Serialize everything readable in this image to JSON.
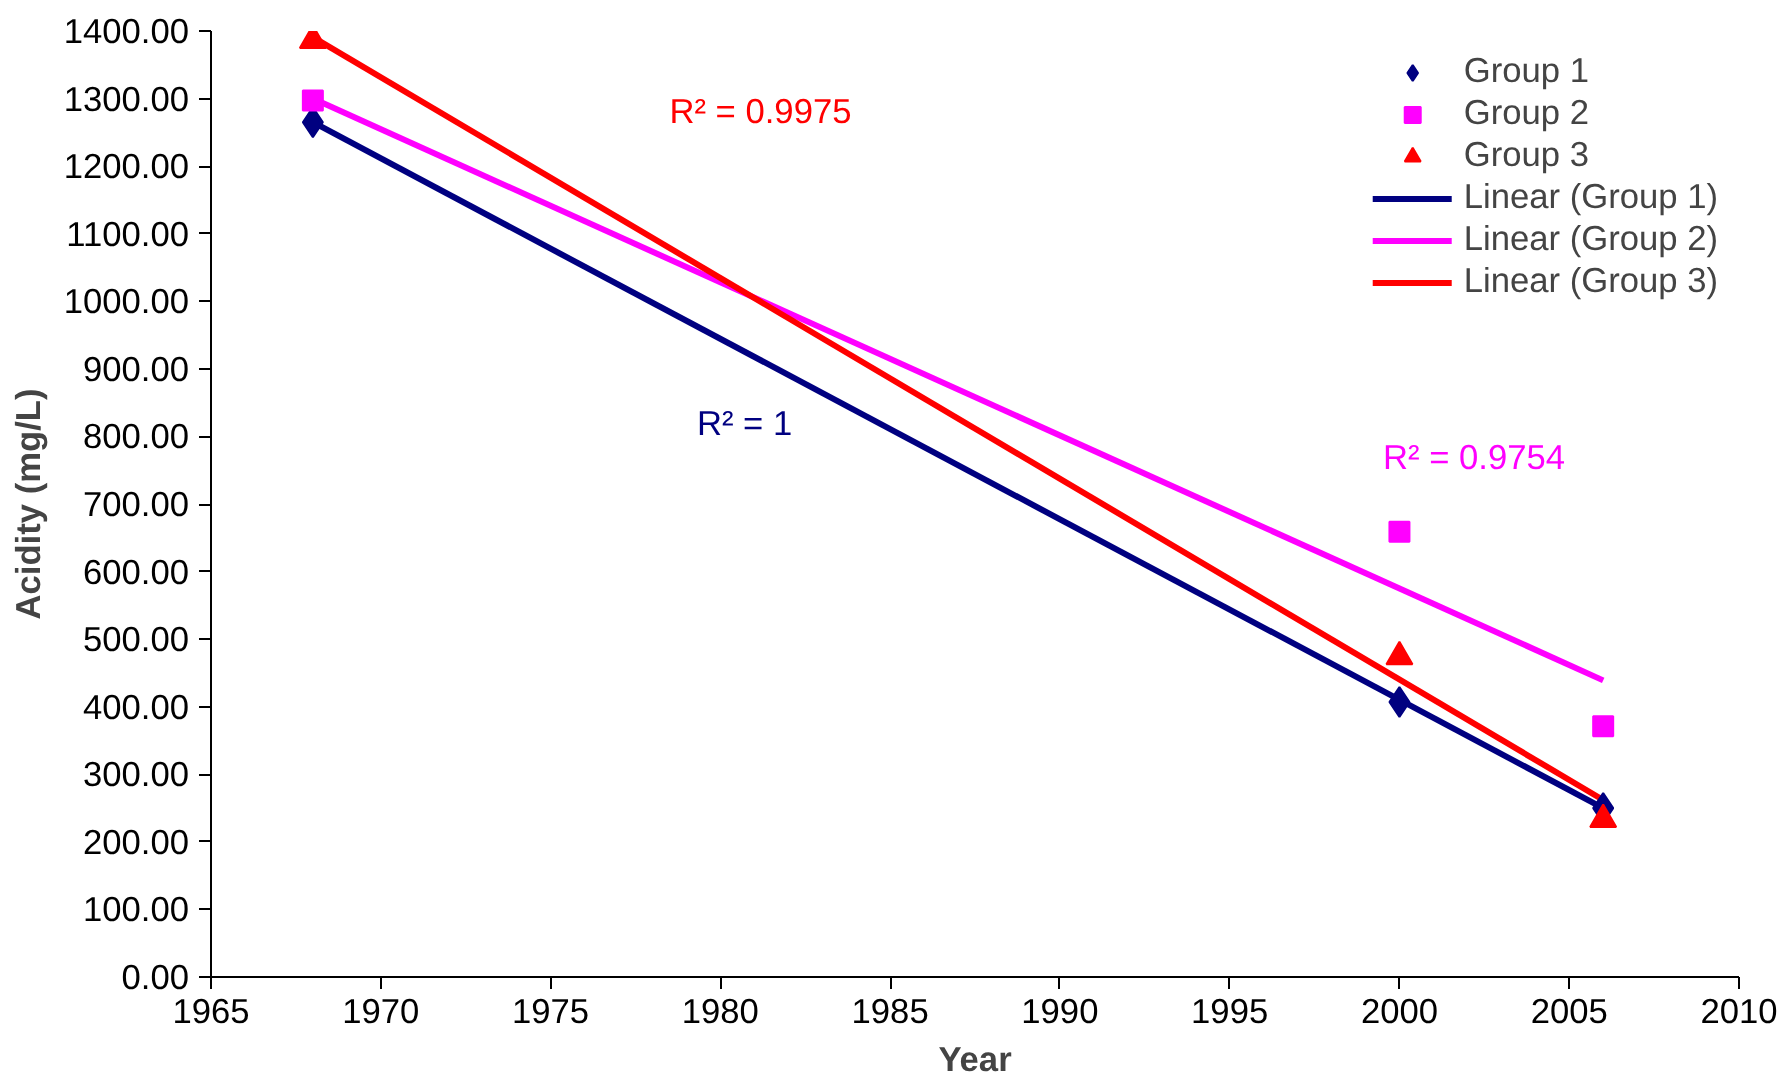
{
  "chart_data": {
    "type": "scatter",
    "xlabel": "Year",
    "ylabel": "Acidity (mg/L)",
    "xlim": [
      1965,
      2010
    ],
    "xticks": [
      1965,
      1970,
      1975,
      1980,
      1985,
      1990,
      1995,
      2000,
      2005,
      2010
    ],
    "ylim": [
      0,
      1400
    ],
    "yticks": [
      {
        "value": 0,
        "label": "0.00"
      },
      {
        "value": 100,
        "label": "100.00"
      },
      {
        "value": 200,
        "label": "200.00"
      },
      {
        "value": 300,
        "label": "300.00"
      },
      {
        "value": 400,
        "label": "400.00"
      },
      {
        "value": 500,
        "label": "500.00"
      },
      {
        "value": 600,
        "label": "600.00"
      },
      {
        "value": 700,
        "label": "700.00"
      },
      {
        "value": 800,
        "label": "800.00"
      },
      {
        "value": 900,
        "label": "900.00"
      },
      {
        "value": 1000,
        "label": "1000.00"
      },
      {
        "value": 1100,
        "label": "1100.00"
      },
      {
        "value": 1200,
        "label": "1200.00"
      },
      {
        "value": 1300,
        "label": "1300.00"
      },
      {
        "value": 1400,
        "label": "1400.00"
      }
    ],
    "grid": false,
    "legend": "top right",
    "series": [
      {
        "name": "Group 1",
        "marker": "diamond",
        "color": "#000080",
        "x": [
          1968,
          2000,
          2006
        ],
        "values": [
          1265,
          407,
          250
        ]
      },
      {
        "name": "Group 2",
        "marker": "square",
        "color": "#ff00ff",
        "x": [
          1968,
          2000,
          2006
        ],
        "values": [
          1297,
          659,
          371
        ]
      },
      {
        "name": "Group 3",
        "marker": "triangle",
        "color": "#ff0000",
        "x": [
          1968,
          2000,
          2006
        ],
        "values": [
          1386,
          474,
          233
        ]
      },
      {
        "name": "Linear (Group 1)",
        "type": "line",
        "color": "#000080",
        "x": [
          1968,
          2006
        ],
        "values": [
          1265,
          250
        ]
      },
      {
        "name": "Linear (Group 2)",
        "type": "line",
        "color": "#ff00ff",
        "x": [
          1968,
          2006
        ],
        "values": [
          1300,
          439
        ]
      },
      {
        "name": "Linear (Group 3)",
        "type": "line",
        "color": "#ff0000",
        "x": [
          1968,
          2006
        ],
        "values": [
          1391,
          262
        ]
      }
    ],
    "annotations": [
      "R² = 1",
      "R² = 0.9754",
      "R² = 0.9975"
    ]
  }
}
